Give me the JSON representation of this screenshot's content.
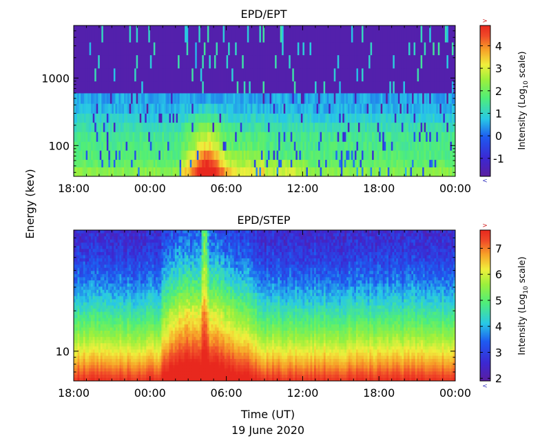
{
  "figure": {
    "ylabel": "Energy (kev)",
    "xlabel": "Time (UT)",
    "date": "19 June 2020"
  },
  "chart_data": [
    {
      "type": "heatmap",
      "title": "EPD/EPT",
      "xlabel": "Time (UT)",
      "ylabel": "Energy (kev)",
      "x_tick_labels": [
        "18:00",
        "00:00",
        "06:00",
        "12:00",
        "18:00",
        "00:00"
      ],
      "x_range_hours": [
        0,
        30
      ],
      "y_scale": "log",
      "y_ticks": [
        {
          "value": 100,
          "label": "100"
        },
        {
          "value": 1000,
          "label": "1000"
        }
      ],
      "y_range": [
        35,
        6000
      ],
      "colorbar": {
        "label_main": "Intensity (Log",
        "label_sub": "10",
        "label_end": " scale)",
        "range": [
          -1.8,
          4.9
        ],
        "ticks": [
          -1,
          0,
          1,
          2,
          3,
          4
        ],
        "over_marker": ">",
        "under_marker": "<"
      },
      "energy_bands": [
        {
          "e_lo": 35,
          "e_hi": 48,
          "base": 2.3
        },
        {
          "e_lo": 48,
          "e_hi": 62,
          "base": 1.9
        },
        {
          "e_lo": 62,
          "e_hi": 85,
          "base": 1.7
        },
        {
          "e_lo": 85,
          "e_hi": 115,
          "base": 1.6
        },
        {
          "e_lo": 115,
          "e_hi": 160,
          "base": 1.5
        },
        {
          "e_lo": 160,
          "e_hi": 220,
          "base": 1.2
        },
        {
          "e_lo": 220,
          "e_hi": 300,
          "base": 0.9
        },
        {
          "e_lo": 300,
          "e_hi": 420,
          "base": 0.6
        },
        {
          "e_lo": 420,
          "e_hi": 600,
          "base": 0.5
        },
        {
          "e_lo": 600,
          "e_hi": 900,
          "base": -1.6
        },
        {
          "e_lo": 900,
          "e_hi": 1400,
          "base": -1.6
        },
        {
          "e_lo": 1400,
          "e_hi": 2200,
          "base": -1.6
        },
        {
          "e_lo": 2200,
          "e_hi": 3400,
          "base": -1.6
        },
        {
          "e_lo": 3400,
          "e_hi": 6000,
          "base": -1.6
        }
      ],
      "event": {
        "peak_hour": 10.5,
        "width_hours": 1.2,
        "amplitude": 2.4,
        "broad_start": 8.5,
        "broad_end": 11.0,
        "broad_amplitude": 0.8
      },
      "secondary_enhancement": {
        "start_hour": 14.5,
        "end_hour": 19.0,
        "amplitude": 0.6
      }
    },
    {
      "type": "heatmap",
      "title": "EPD/STEP",
      "xlabel": "Time (UT)",
      "ylabel": "Energy (kev)",
      "x_tick_labels": [
        "18:00",
        "00:00",
        "06:00",
        "12:00",
        "18:00",
        "00:00"
      ],
      "x_range_hours": [
        0,
        30
      ],
      "y_scale": "log",
      "y_ticks": [
        {
          "value": 10,
          "label": "10"
        }
      ],
      "y_range": [
        6,
        80
      ],
      "colorbar": {
        "label_main": "Intensity (Log",
        "label_sub": "10",
        "label_end": " scale)",
        "range": [
          1.9,
          7.7
        ],
        "ticks": [
          2,
          3,
          4,
          5,
          6,
          7
        ],
        "over_marker": ">",
        "under_marker": "<"
      },
      "profile": {
        "top_level": 2.6,
        "bottom_level": 7.6,
        "gradient_power": 1.5,
        "event_start_hour": 6.8,
        "event_peak_hour": 9.0,
        "event_end_hour": 14.5,
        "event_amplitude": 1.6,
        "spike_hour": 10.3,
        "spike_width_hours": 0.25
      }
    }
  ]
}
